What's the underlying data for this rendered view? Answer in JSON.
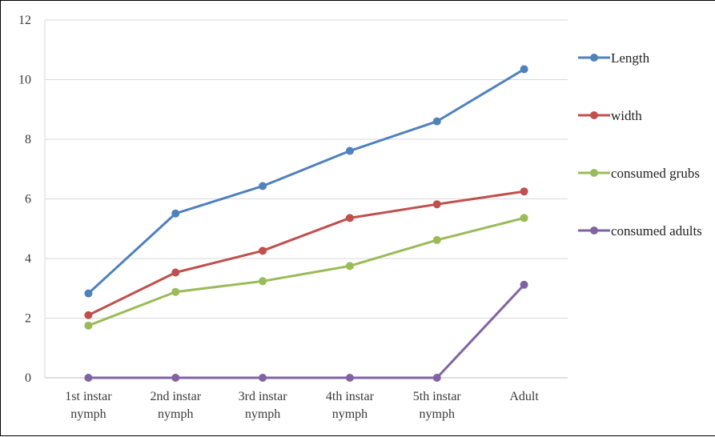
{
  "chart_data": {
    "type": "line",
    "title": "",
    "xlabel": "",
    "ylabel": "",
    "categories": [
      [
        "1st instar",
        "nymph"
      ],
      [
        "2nd instar",
        "nymph"
      ],
      [
        "3rd instar",
        "nymph"
      ],
      [
        "4th instar",
        "nymph"
      ],
      [
        "5th instar",
        "nymph"
      ],
      [
        "Adult"
      ]
    ],
    "ylim": [
      0,
      12
    ],
    "yticks": [
      0,
      2,
      4,
      6,
      8,
      10,
      12
    ],
    "grid": true,
    "legend_position": "right",
    "series": [
      {
        "name": "Length",
        "color": "#4f81bd",
        "values": [
          2.83,
          5.51,
          6.43,
          7.61,
          8.6,
          10.35
        ]
      },
      {
        "name": "width",
        "color": "#c0504d",
        "values": [
          2.1,
          3.53,
          4.26,
          5.36,
          5.82,
          6.25
        ]
      },
      {
        "name": "consumed grubs",
        "color": "#9bbb59",
        "values": [
          1.75,
          2.88,
          3.24,
          3.75,
          4.62,
          5.36
        ]
      },
      {
        "name": "consumed adults",
        "color": "#8064a2",
        "values": [
          0,
          0,
          0,
          0,
          0,
          3.12
        ]
      }
    ]
  }
}
